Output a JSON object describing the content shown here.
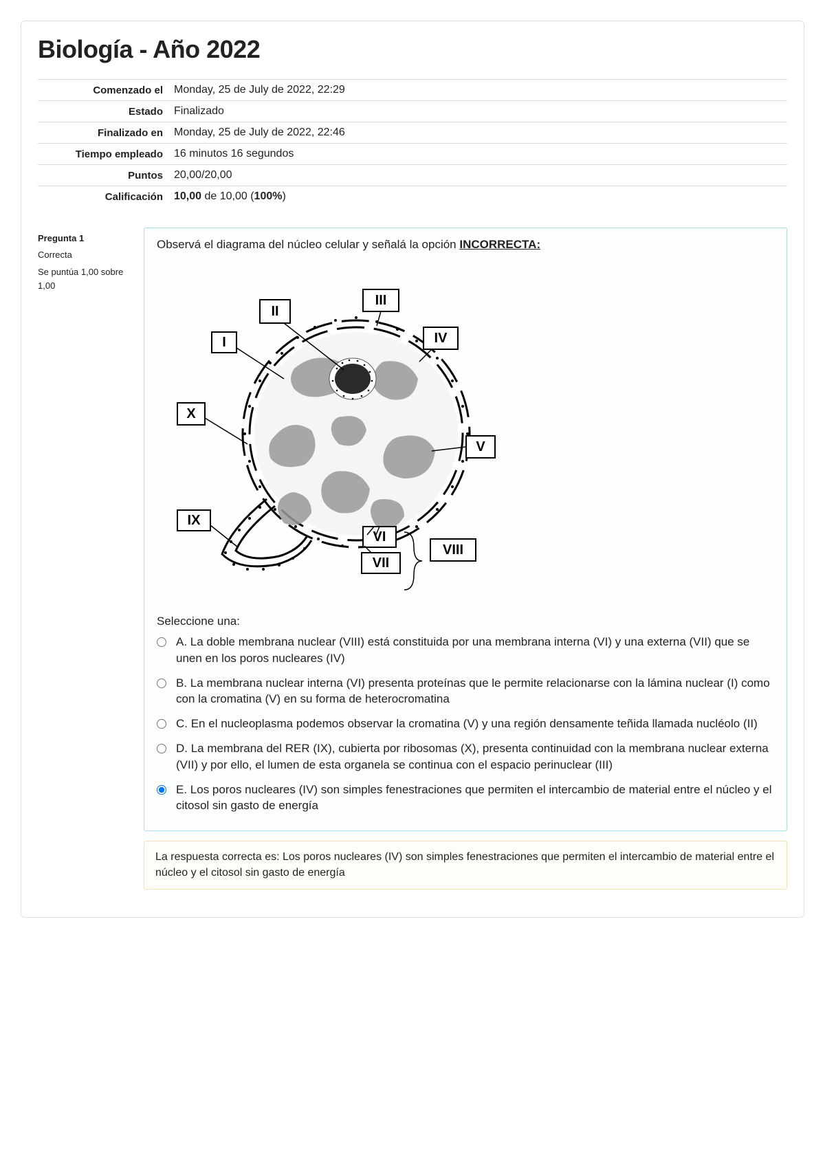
{
  "page": {
    "title": "Biología - Año 2022"
  },
  "summary": {
    "rows": [
      {
        "label": "Comenzado el",
        "value": "Monday, 25 de July de 2022, 22:29"
      },
      {
        "label": "Estado",
        "value": "Finalizado"
      },
      {
        "label": "Finalizado en",
        "value": "Monday, 25 de July de 2022, 22:46"
      },
      {
        "label": "Tiempo empleado",
        "value": "16 minutos 16 segundos"
      },
      {
        "label": "Puntos",
        "value": "20,00/20,00"
      },
      {
        "label": "Calificación",
        "value_html_parts": [
          "10,00",
          " de 10,00 (",
          "100%",
          ")"
        ]
      }
    ]
  },
  "question": {
    "label_prefix": "Pregunta ",
    "number": "1",
    "state": "Correcta",
    "grade": "Se puntúa 1,00 sobre 1,00",
    "prompt_prefix": "Observá el diagrama del núcleo celular y señalá la opción ",
    "prompt_key": "INCORRECTA:",
    "select_one": "Seleccione una:",
    "diagram": {
      "labels": [
        "I",
        "II",
        "III",
        "IV",
        "V",
        "VI",
        "VII",
        "VIII",
        "IX",
        "X"
      ]
    },
    "options": [
      {
        "text": "A. La doble membrana nuclear (VIII) está constituida por una membrana interna (VI) y una externa (VII) que se unen en los poros nucleares (IV)",
        "selected": false
      },
      {
        "text": "B. La membrana nuclear interna (VI) presenta proteínas que le permite relacionarse con la lámina nuclear (I) como con la cromatina (V) en su forma de heterocromatina",
        "selected": false
      },
      {
        "text": "C. En el nucleoplasma podemos observar la cromatina (V) y una región densamente teñida llamada nucléolo (II)",
        "selected": false
      },
      {
        "text": "D. La membrana del RER (IX), cubierta por ribosomas (X), presenta continuidad con la membrana nuclear externa (VII) y por ello, el lumen de esta organela se continua con el espacio perinuclear (III)",
        "selected": false
      },
      {
        "text": "E. Los poros nucleares (IV) son simples fenestraciones que permiten el intercambio de material entre el núcleo y el citosol sin gasto de energía",
        "selected": true
      }
    ],
    "feedback": "La respuesta correcta es: Los poros nucleares (IV) son simples fenestraciones que permiten el intercambio de material entre el núcleo y el citosol sin gasto de energía"
  },
  "colors": {
    "border": "#e0e0e0",
    "qborder": "#a8e0e8",
    "fbborder": "#f5e0b8"
  }
}
